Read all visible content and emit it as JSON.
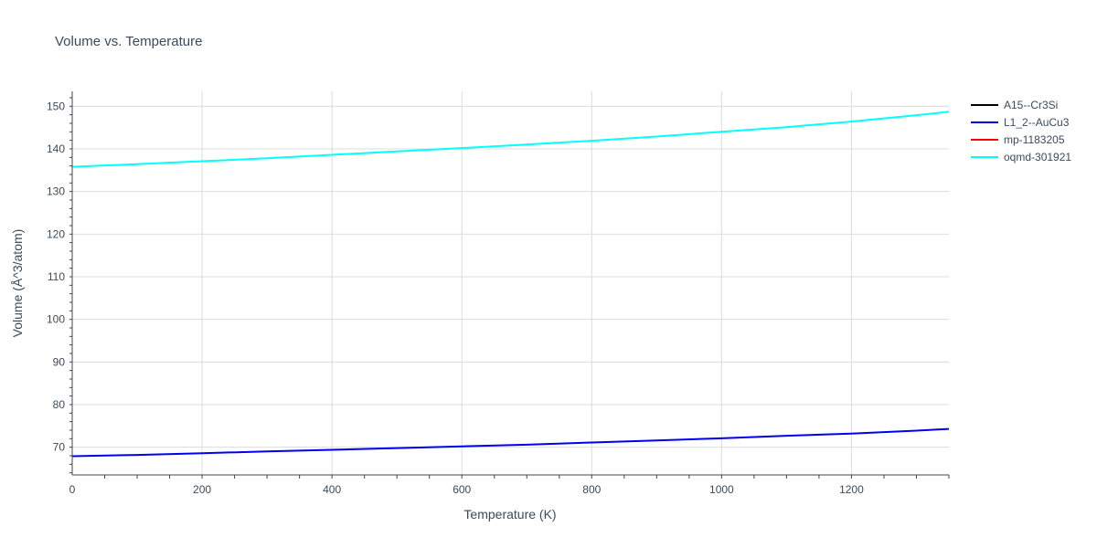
{
  "chart_data": {
    "type": "line",
    "title": "Volume vs. Temperature",
    "xlabel": "Temperature (K)",
    "ylabel": "Volume (Å^3/atom)",
    "xlim": [
      0,
      1350
    ],
    "ylim": [
      63.5,
      153.5
    ],
    "xticks": [
      0,
      200,
      400,
      600,
      800,
      1000,
      1200
    ],
    "yticks": [
      70,
      80,
      90,
      100,
      110,
      120,
      130,
      140,
      150
    ],
    "grid": true,
    "legend_position": "top-right",
    "series": [
      {
        "name": "A15--Cr3Si",
        "color": "#000000",
        "x": [],
        "y": []
      },
      {
        "name": "L1_2--AuCu3",
        "color": "#0000ee",
        "x": [
          0,
          100,
          200,
          300,
          400,
          500,
          600,
          700,
          800,
          900,
          1000,
          1100,
          1200,
          1300,
          1350
        ],
        "y": [
          67.9,
          68.2,
          68.6,
          69.0,
          69.4,
          69.8,
          70.2,
          70.6,
          71.1,
          71.6,
          72.1,
          72.7,
          73.2,
          73.9,
          74.3
        ]
      },
      {
        "name": "mp-1183205",
        "color": "#ff0000",
        "x": [],
        "y": []
      },
      {
        "name": "oqmd-301921",
        "color": "#00ffff",
        "x": [
          0,
          100,
          200,
          300,
          400,
          500,
          600,
          700,
          800,
          900,
          1000,
          1100,
          1200,
          1300,
          1350
        ],
        "y": [
          135.8,
          136.4,
          137.1,
          137.8,
          138.6,
          139.4,
          140.2,
          141.0,
          141.9,
          142.9,
          144.0,
          145.1,
          146.4,
          147.9,
          148.7
        ]
      }
    ]
  }
}
